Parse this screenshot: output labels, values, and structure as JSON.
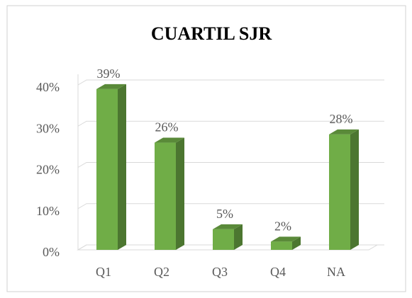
{
  "chart_data": {
    "type": "bar3d",
    "title": "CUARTIL SJR",
    "categories": [
      "Q1",
      "Q2",
      "Q3",
      "Q4",
      "NA"
    ],
    "values": [
      39,
      26,
      5,
      2,
      28
    ],
    "value_labels": [
      "39%",
      "26%",
      "5%",
      "2%",
      "28%"
    ],
    "color": "#70ad47",
    "ylim": [
      0,
      40
    ],
    "yticks": [
      {
        "value": 0,
        "label": "0%"
      },
      {
        "value": 10,
        "label": "10%"
      },
      {
        "value": 20,
        "label": "20%"
      },
      {
        "value": 30,
        "label": "30%"
      },
      {
        "value": 40,
        "label": "40%"
      }
    ],
    "grid": true
  }
}
